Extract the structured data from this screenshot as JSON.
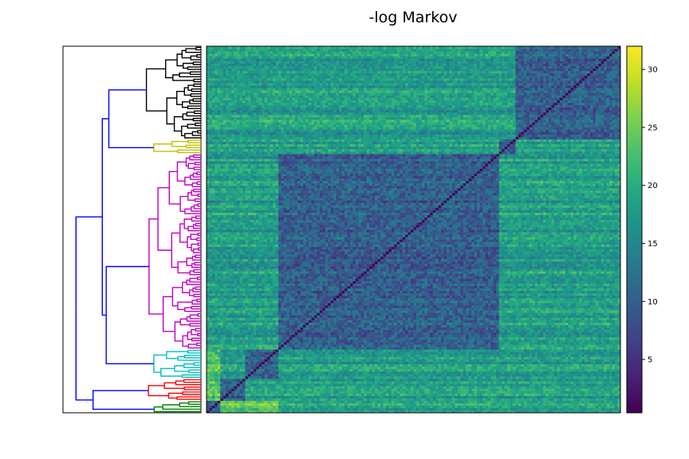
{
  "chart_data": {
    "type": "heatmap",
    "title": "-log Markov",
    "colormap": "viridis",
    "colorbar": {
      "min": 0.4,
      "max": 32,
      "ticks": [
        5,
        10,
        15,
        20,
        25,
        30
      ],
      "tick_labels": [
        "5",
        "10",
        "15",
        "20",
        "25",
        "30"
      ]
    },
    "matrix_size": 150,
    "diagonal_value": 0.5,
    "clusters": [
      {
        "name": "black",
        "color": "#000000",
        "size": 38
      },
      {
        "name": "yellow",
        "color": "#bfbf00",
        "size": 6
      },
      {
        "name": "magenta",
        "color": "#bf00bf",
        "size": 80
      },
      {
        "name": "cyan",
        "color": "#00bfbf",
        "size": 12
      },
      {
        "name": "red",
        "color": "#ff0000",
        "size": 9
      },
      {
        "name": "green",
        "color": "#008000",
        "size": 5
      }
    ],
    "link_color": "#0000ff",
    "grid": false
  }
}
